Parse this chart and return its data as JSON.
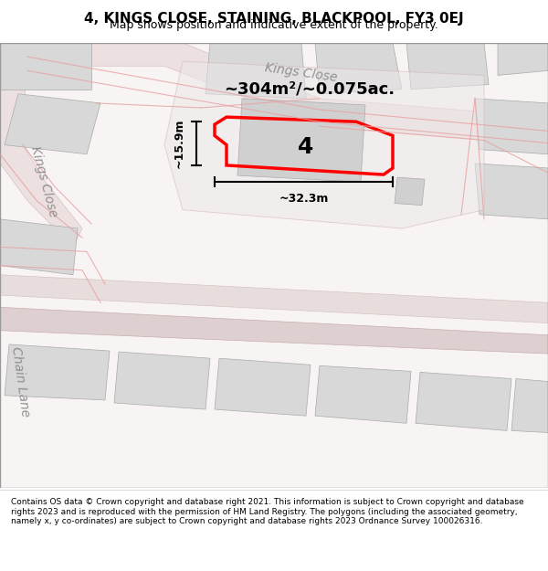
{
  "title_line1": "4, KINGS CLOSE, STAINING, BLACKPOOL, FY3 0EJ",
  "title_line2": "Map shows position and indicative extent of the property.",
  "footer_text": "Contains OS data © Crown copyright and database right 2021. This information is subject to Crown copyright and database rights 2023 and is reproduced with the permission of HM Land Registry. The polygons (including the associated geometry, namely x, y co-ordinates) are subject to Crown copyright and database rights 2023 Ordnance Survey 100026316.",
  "area_label": "~304m²/~0.075ac.",
  "property_number": "4",
  "dim_width": "~32.3m",
  "dim_height": "~15.9m",
  "street_labels": [
    "Kings Close",
    "Kings Close",
    "Chain Lane"
  ],
  "bg_color": "#f5f0f0",
  "map_bg": "#ffffff",
  "road_color": "#e8c8c8",
  "building_color": "#d8d8d8",
  "highlight_color": "#ff0000",
  "border_color": "#cccccc"
}
